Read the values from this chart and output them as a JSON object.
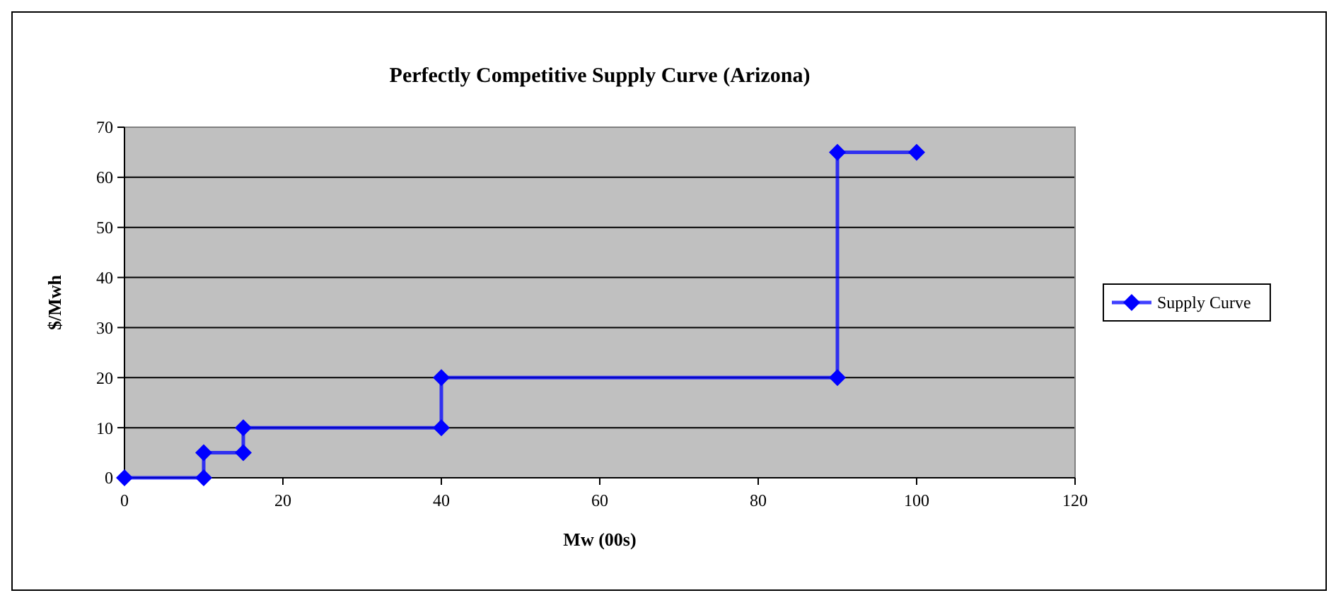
{
  "chart_data": {
    "type": "line",
    "title": "Perfectly Competitive Supply Curve (Arizona)",
    "xlabel": "Mw (00s)",
    "ylabel": "$/Mwh",
    "x": [
      0,
      10,
      10,
      15,
      15,
      40,
      40,
      90,
      90,
      100
    ],
    "series": [
      {
        "name": "Supply Curve",
        "color": "#0000ff",
        "values": [
          0,
          0,
          5,
          5,
          10,
          10,
          20,
          20,
          65,
          65
        ]
      }
    ],
    "xlim": [
      0,
      120
    ],
    "xticks": [
      0,
      20,
      40,
      60,
      80,
      100,
      120
    ],
    "ylim": [
      0,
      70
    ],
    "yticks": [
      0,
      10,
      20,
      30,
      40,
      50,
      60,
      70
    ],
    "grid": "y",
    "legend": "right",
    "marker": "diamond",
    "line_style": "solid"
  }
}
